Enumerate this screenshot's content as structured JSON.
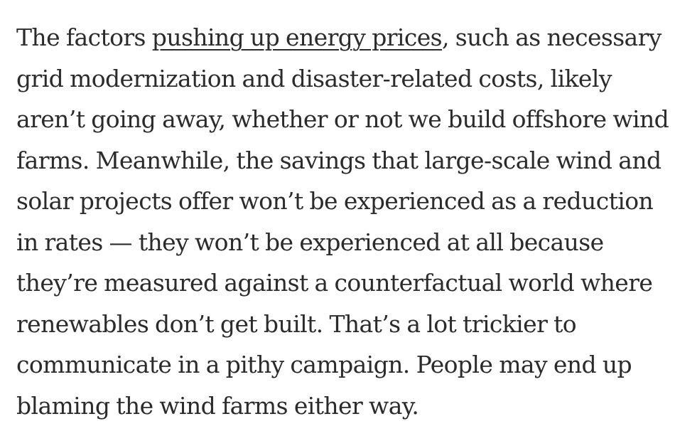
{
  "article": {
    "lines": [
      {
        "before": "The factors ",
        "link": "pushing up energy prices",
        "after": ", such as necessary"
      },
      {
        "text": "grid modernization and disaster-related costs, likely"
      },
      {
        "text": "aren’t going away, whether or not we build offshore wind"
      },
      {
        "text": "farms. Meanwhile, the savings that large-scale wind and"
      },
      {
        "text": "solar projects offer won’t be experienced as a reduction"
      },
      {
        "text": "in rates — they won’t be experienced at all because"
      },
      {
        "text": "they’re measured against a counterfactual world where"
      },
      {
        "text": "renewables don’t get built. That’s a lot trickier to"
      },
      {
        "text": "communicate in a pithy campaign. People may end up"
      },
      {
        "text": "blaming the wind farms either way."
      }
    ]
  }
}
